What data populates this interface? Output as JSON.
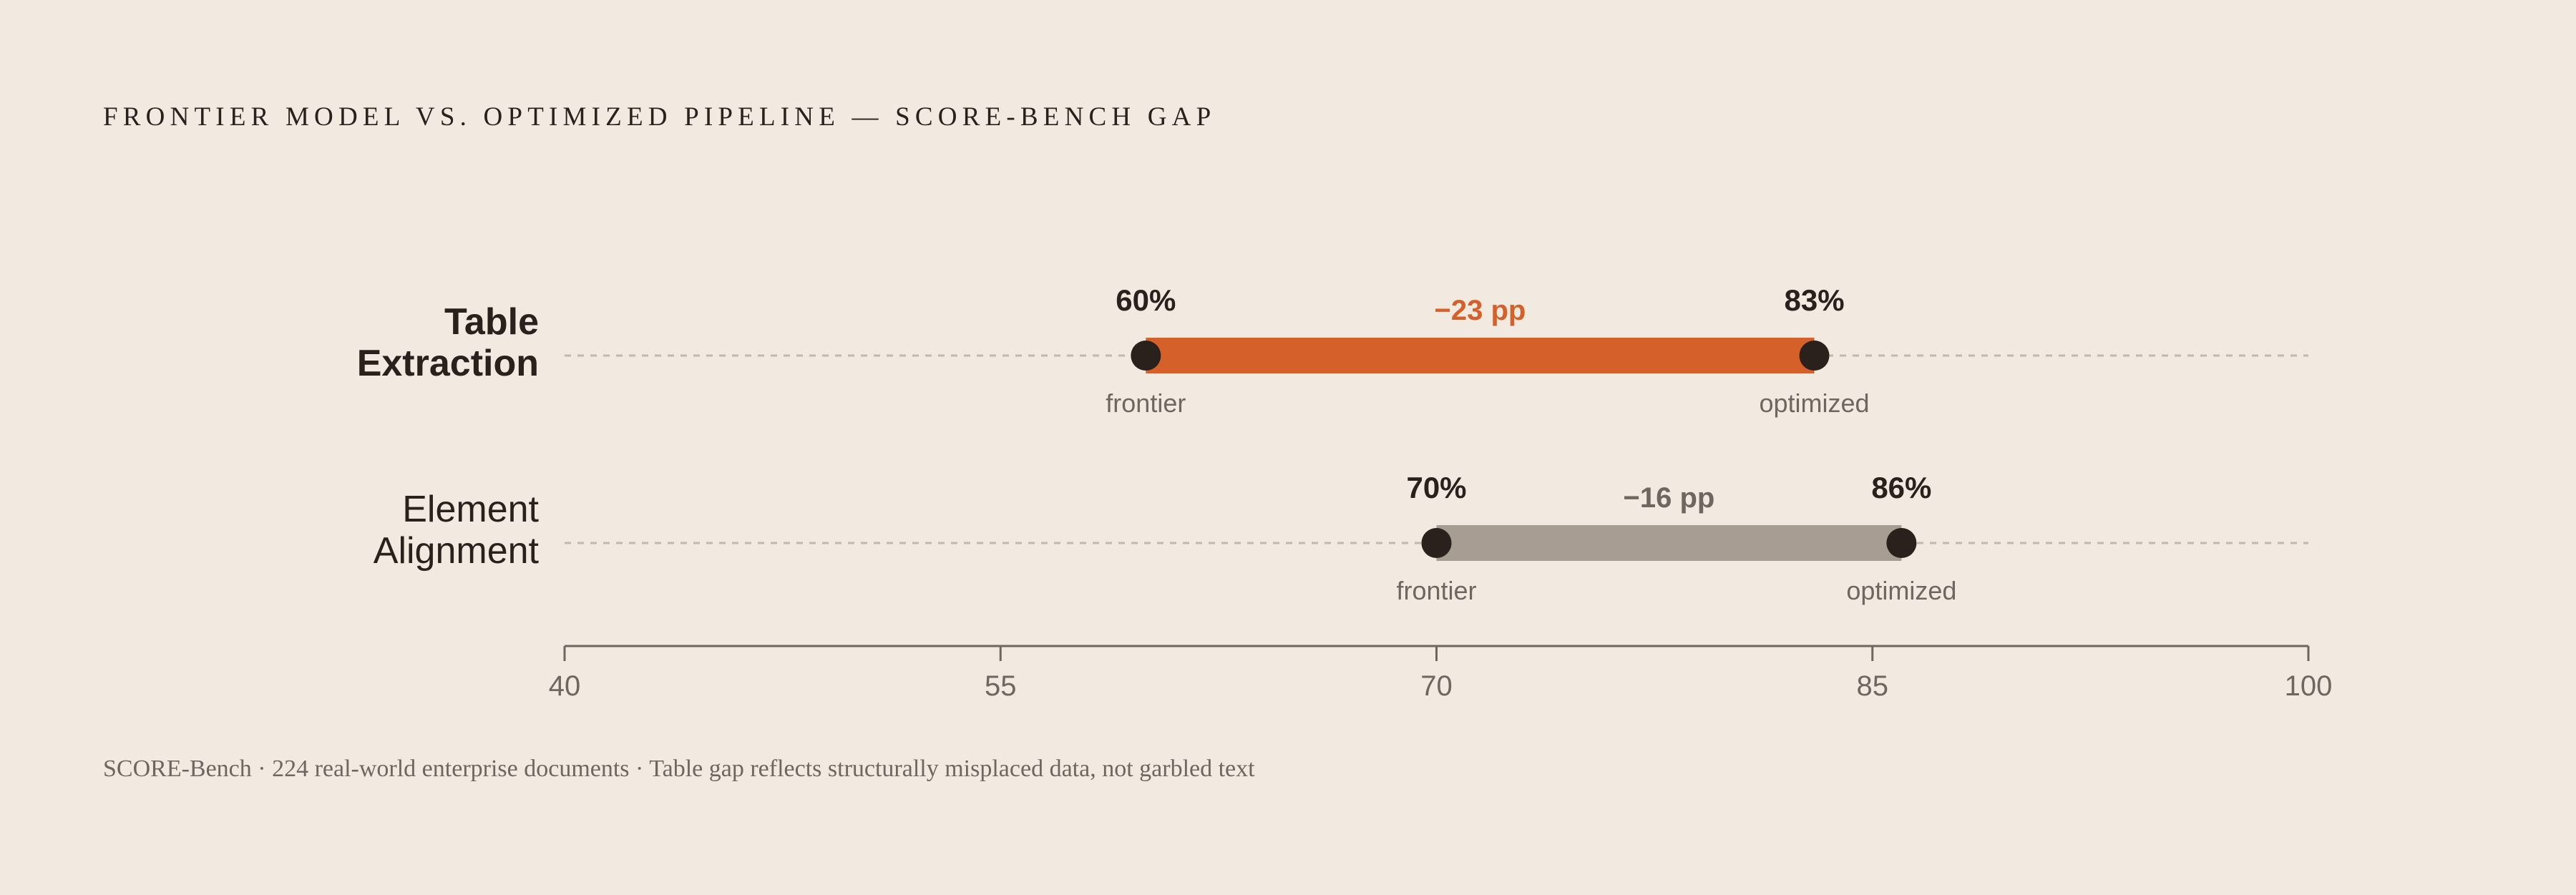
{
  "title": "FRONTIER MODEL VS. OPTIMIZED PIPELINE — SCORE-BENCH GAP",
  "footnote": "SCORE-Bench · 224 real-world enterprise documents · Table gap reflects structurally misplaced data, not garbled text",
  "colors": {
    "background": "#f2e9e1",
    "highlight_bar": "#d5602a",
    "muted_bar": "#a89d93",
    "dot": "#2a211c",
    "guide": "#c3b8ae",
    "axis": "#6f665f"
  },
  "chart_data": {
    "type": "dumbbell",
    "xlim": [
      40,
      100
    ],
    "xticks": [
      "40",
      "55",
      "70",
      "85",
      "100"
    ],
    "xtick_values": [
      40,
      55,
      70,
      85,
      100
    ],
    "grid": false,
    "end_labels": {
      "start": "frontier",
      "end": "optimized"
    },
    "rows": [
      {
        "category": "Table\nExtraction",
        "category_lines": [
          "Table",
          "Extraction"
        ],
        "emphasis": true,
        "frontier": 60,
        "optimized": 83,
        "frontier_label": "60%",
        "optimized_label": "83%",
        "gap_label": "−23 pp",
        "color": "#d5602a",
        "gap_color": "#d5602a"
      },
      {
        "category": "Element\nAlignment",
        "category_lines": [
          "Element",
          "Alignment"
        ],
        "emphasis": false,
        "frontier": 70,
        "optimized": 86,
        "frontier_label": "70%",
        "optimized_label": "86%",
        "gap_label": "−16 pp",
        "color": "#a89d93",
        "gap_color": "#6f665f"
      }
    ]
  }
}
